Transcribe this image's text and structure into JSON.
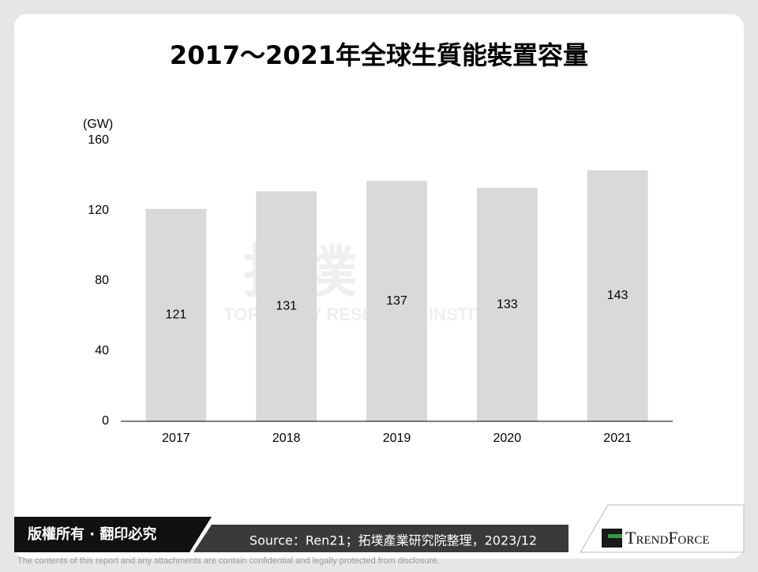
{
  "chart_data": {
    "type": "bar",
    "title": "2017～2021年全球生質能裝置容量",
    "y_unit": "(GW)",
    "categories": [
      "2017",
      "2018",
      "2019",
      "2020",
      "2021"
    ],
    "values": [
      121,
      131,
      137,
      133,
      143
    ],
    "color": "#d9d9d9",
    "ylim": [
      0,
      160
    ],
    "yticks": [
      0,
      40,
      80,
      120,
      160
    ],
    "grid": false
  },
  "watermark": {
    "logo": "拓墣",
    "name": "TOPOLOGY RESEARCH INSTITUTE"
  },
  "footer": {
    "copyright": "版權所有 · 翻印必究",
    "source": "Source：Ren21；拓墣產業研究院整理，2023/12",
    "disclaimer": "The contents of this report and any attachments are contain confidential and legally protected from disclosure.",
    "logo": "TrendForce"
  }
}
